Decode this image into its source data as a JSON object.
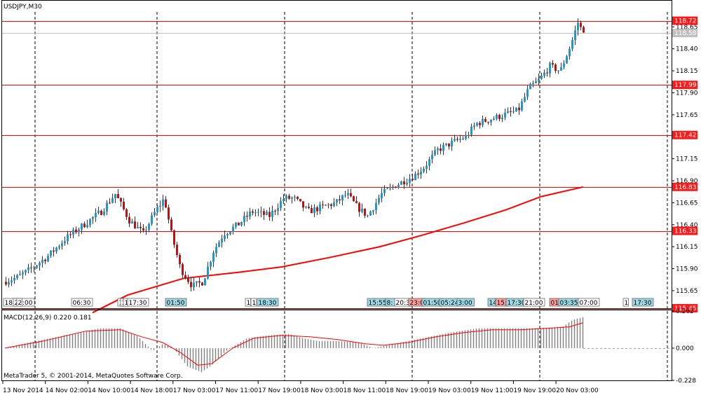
{
  "chart_data": [
    {
      "type": "candlestick",
      "title": "USDJPY,M30",
      "ylim": [
        115.45,
        118.82
      ],
      "y_ticks": [
        "118.65",
        "118.40",
        "118.15",
        "117.90",
        "117.65",
        "117.40",
        "117.15",
        "116.90",
        "116.65",
        "116.40",
        "116.15",
        "115.90",
        "115.65"
      ],
      "current_price": "118.58",
      "horizontal_levels": [
        {
          "label": "118.72",
          "value": 118.72
        },
        {
          "label": "117.99",
          "value": 117.99
        },
        {
          "label": "117.42",
          "value": 117.42
        },
        {
          "label": "116.83",
          "value": 116.83
        },
        {
          "label": "116.33",
          "value": 116.33
        },
        {
          "label": "115.45",
          "value": 115.45
        }
      ],
      "moving_average": {
        "points": [
          {
            "i": 130,
            "y": 115.4
          },
          {
            "i": 180,
            "y": 115.6
          },
          {
            "i": 260,
            "y": 115.79
          },
          {
            "i": 340,
            "y": 115.86
          },
          {
            "i": 400,
            "y": 115.92
          },
          {
            "i": 470,
            "y": 116.03
          },
          {
            "i": 540,
            "y": 116.15
          },
          {
            "i": 600,
            "y": 116.28
          },
          {
            "i": 660,
            "y": 116.42
          },
          {
            "i": 720,
            "y": 116.57
          },
          {
            "i": 770,
            "y": 116.72
          },
          {
            "i": 830,
            "y": 116.83
          }
        ]
      },
      "anchors": [
        {
          "i": 5,
          "y": 115.75
        },
        {
          "i": 25,
          "y": 115.8
        },
        {
          "i": 45,
          "y": 115.9
        },
        {
          "i": 70,
          "y": 116.05
        },
        {
          "i": 95,
          "y": 116.25
        },
        {
          "i": 120,
          "y": 116.4
        },
        {
          "i": 145,
          "y": 116.55
        },
        {
          "i": 165,
          "y": 116.75
        },
        {
          "i": 185,
          "y": 116.45
        },
        {
          "i": 205,
          "y": 116.3
        },
        {
          "i": 222,
          "y": 116.55
        },
        {
          "i": 235,
          "y": 116.7
        },
        {
          "i": 245,
          "y": 116.3
        },
        {
          "i": 258,
          "y": 115.9
        },
        {
          "i": 275,
          "y": 115.7
        },
        {
          "i": 290,
          "y": 115.75
        },
        {
          "i": 305,
          "y": 116.1
        },
        {
          "i": 320,
          "y": 116.3
        },
        {
          "i": 340,
          "y": 116.4
        },
        {
          "i": 360,
          "y": 116.55
        },
        {
          "i": 385,
          "y": 116.5
        },
        {
          "i": 405,
          "y": 116.7
        },
        {
          "i": 420,
          "y": 116.7
        },
        {
          "i": 440,
          "y": 116.55
        },
        {
          "i": 460,
          "y": 116.6
        },
        {
          "i": 480,
          "y": 116.65
        },
        {
          "i": 495,
          "y": 116.75
        },
        {
          "i": 510,
          "y": 116.6
        },
        {
          "i": 525,
          "y": 116.5
        },
        {
          "i": 545,
          "y": 116.75
        },
        {
          "i": 565,
          "y": 116.85
        },
        {
          "i": 590,
          "y": 116.95
        },
        {
          "i": 605,
          "y": 117.05
        },
        {
          "i": 625,
          "y": 117.25
        },
        {
          "i": 650,
          "y": 117.35
        },
        {
          "i": 665,
          "y": 117.4
        },
        {
          "i": 680,
          "y": 117.55
        },
        {
          "i": 700,
          "y": 117.6
        },
        {
          "i": 720,
          "y": 117.65
        },
        {
          "i": 740,
          "y": 117.7
        },
        {
          "i": 755,
          "y": 117.95
        },
        {
          "i": 770,
          "y": 118.05
        },
        {
          "i": 785,
          "y": 118.2
        },
        {
          "i": 800,
          "y": 118.15
        },
        {
          "i": 815,
          "y": 118.45
        },
        {
          "i": 825,
          "y": 118.7
        },
        {
          "i": 830,
          "y": 118.62
        }
      ],
      "markers": [
        {
          "i": 3,
          "text": "18:"
        },
        {
          "i": 17,
          "text": "21:00"
        },
        {
          "i": 22,
          "text": "2"
        },
        {
          "i": 100,
          "text": "06:30"
        },
        {
          "i": 166,
          "text": "1"
        },
        {
          "i": 170,
          "text": "1"
        },
        {
          "i": 174,
          "text": "1"
        },
        {
          "i": 180,
          "text": "17:30"
        },
        {
          "i": 234,
          "text": "01:50"
        },
        {
          "i": 348,
          "text": "1"
        },
        {
          "i": 356,
          "text": "1"
        },
        {
          "i": 365,
          "text": "18:30"
        },
        {
          "i": 522,
          "text": "15:55"
        },
        {
          "i": 548,
          "text": "8:"
        },
        {
          "i": 561,
          "text": "20:3"
        },
        {
          "i": 581,
          "text": "23:0"
        },
        {
          "i": 600,
          "text": "01:50"
        },
        {
          "i": 625,
          "text": "05:24"
        },
        {
          "i": 650,
          "text": "3:00"
        },
        {
          "i": 694,
          "text": "14"
        },
        {
          "i": 705,
          "text": "15:"
        },
        {
          "i": 720,
          "text": "17:30"
        },
        {
          "i": 745,
          "text": "21:00"
        },
        {
          "i": 782,
          "text": "01"
        },
        {
          "i": 795,
          "text": "03:35"
        },
        {
          "i": 823,
          "text": "07:00"
        },
        {
          "i": 887,
          "text": "1"
        },
        {
          "i": 900,
          "text": "17:30"
        }
      ],
      "x_tick_labels": [
        "13 Nov 2014",
        "14 Nov 02:00",
        "14 Nov 10:00",
        "14 Nov 18:00",
        "17 Nov 03:00",
        "17 Nov 11:00",
        "17 Nov 19:00",
        "18 Nov 03:00",
        "18 Nov 11:00",
        "18 Nov 19:00",
        "19 Nov 03:00",
        "19 Nov 11:00",
        "19 Nov 19:00",
        "20 Nov 03:00"
      ],
      "period_separators": [
        48,
        222,
        404,
        586,
        768,
        950
      ]
    },
    {
      "type": "histogram",
      "title": "MACD(12,26,9) 0.220 0.181",
      "ylim": [
        -0.228,
        0.262
      ],
      "y_ticks": [
        "0.262",
        "0.000",
        "-0.228"
      ],
      "histogram_anchors": [
        {
          "i": 5,
          "y": 0.0
        },
        {
          "i": 30,
          "y": 0.03
        },
        {
          "i": 60,
          "y": 0.06
        },
        {
          "i": 100,
          "y": 0.1
        },
        {
          "i": 140,
          "y": 0.14
        },
        {
          "i": 170,
          "y": 0.14
        },
        {
          "i": 195,
          "y": 0.08
        },
        {
          "i": 215,
          "y": -0.02
        },
        {
          "i": 230,
          "y": 0.03
        },
        {
          "i": 245,
          "y": 0.0
        },
        {
          "i": 265,
          "y": -0.13
        },
        {
          "i": 285,
          "y": -0.17
        },
        {
          "i": 300,
          "y": -0.12
        },
        {
          "i": 320,
          "y": -0.02
        },
        {
          "i": 350,
          "y": 0.07
        },
        {
          "i": 380,
          "y": 0.09
        },
        {
          "i": 410,
          "y": 0.1
        },
        {
          "i": 430,
          "y": 0.07
        },
        {
          "i": 450,
          "y": 0.05
        },
        {
          "i": 480,
          "y": 0.05
        },
        {
          "i": 510,
          "y": 0.04
        },
        {
          "i": 530,
          "y": 0.0
        },
        {
          "i": 560,
          "y": 0.03
        },
        {
          "i": 600,
          "y": 0.07
        },
        {
          "i": 640,
          "y": 0.11
        },
        {
          "i": 680,
          "y": 0.14
        },
        {
          "i": 720,
          "y": 0.14
        },
        {
          "i": 760,
          "y": 0.14
        },
        {
          "i": 800,
          "y": 0.15
        },
        {
          "i": 815,
          "y": 0.2
        },
        {
          "i": 830,
          "y": 0.22
        }
      ],
      "signal_anchors": [
        {
          "i": 5,
          "y": 0.0
        },
        {
          "i": 60,
          "y": 0.05
        },
        {
          "i": 120,
          "y": 0.12
        },
        {
          "i": 170,
          "y": 0.13
        },
        {
          "i": 200,
          "y": 0.08
        },
        {
          "i": 230,
          "y": 0.04
        },
        {
          "i": 255,
          "y": -0.03
        },
        {
          "i": 280,
          "y": -0.12
        },
        {
          "i": 300,
          "y": -0.11
        },
        {
          "i": 330,
          "y": 0.0
        },
        {
          "i": 360,
          "y": 0.07
        },
        {
          "i": 400,
          "y": 0.09
        },
        {
          "i": 440,
          "y": 0.08
        },
        {
          "i": 480,
          "y": 0.06
        },
        {
          "i": 520,
          "y": 0.03
        },
        {
          "i": 545,
          "y": 0.02
        },
        {
          "i": 580,
          "y": 0.04
        },
        {
          "i": 620,
          "y": 0.08
        },
        {
          "i": 660,
          "y": 0.11
        },
        {
          "i": 700,
          "y": 0.13
        },
        {
          "i": 740,
          "y": 0.13
        },
        {
          "i": 780,
          "y": 0.14
        },
        {
          "i": 810,
          "y": 0.15
        },
        {
          "i": 830,
          "y": 0.18
        }
      ],
      "copyright": "MetaTrader 5, © 2001-2014, MetaQuotes Software Corp."
    }
  ],
  "colors": {
    "bull": "#00a2e8",
    "bear": "#e60000",
    "wick": "#333333",
    "level": "#ff0000",
    "ma": "#ff0000",
    "grid_sep": "#000000",
    "histogram": "#808080",
    "marker_blue_bg": "#9ed9e6",
    "marker_red_bg": "#ff9f9f",
    "price_tag_bg": "#ff1a1a",
    "current_tag_bg": "#c0c0c0"
  }
}
